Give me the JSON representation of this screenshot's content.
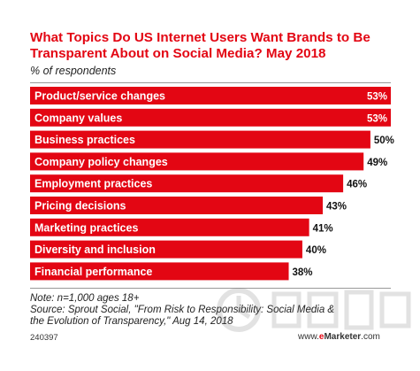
{
  "title": "What Topics Do US Internet Users Want Brands to Be Transparent About on Social Media? May 2018",
  "subtitle": "% of respondents",
  "chart_data": {
    "type": "bar",
    "orientation": "horizontal",
    "categories": [
      "Product/service changes",
      "Company values",
      "Business practices",
      "Company policy changes",
      "Employment practices",
      "Pricing decisions",
      "Marketing practices",
      "Diversity and inclusion",
      "Financial performance"
    ],
    "values": [
      53,
      53,
      50,
      49,
      46,
      43,
      41,
      40,
      38
    ],
    "value_labels": [
      "53%",
      "53%",
      "50%",
      "49%",
      "46%",
      "43%",
      "41%",
      "40%",
      "38%"
    ],
    "xlim": [
      0,
      53
    ],
    "bar_color": "#e30613",
    "label_color": "#ffffff",
    "grid": false
  },
  "note": "Note: n=1,000 ages 18+",
  "source_line1": "Source: Sprout Social, \"From Risk to Responsibility: Social Media &",
  "source_line2": "the Evolution of Transparency,\" Aug 14, 2018",
  "chart_id": "240397",
  "brand": {
    "prefix": "www.",
    "e": "e",
    "name": "Marketer",
    "suffix": ".com"
  }
}
